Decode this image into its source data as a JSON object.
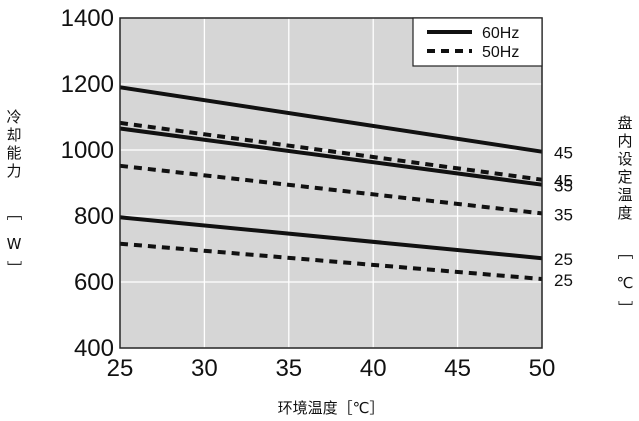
{
  "chart_data": {
    "type": "line",
    "title": "",
    "xlabel": "环境温度［℃］",
    "ylabel_chars": [
      "冷",
      "却",
      "能",
      "力"
    ],
    "ylabel_unit": [
      "［",
      "W",
      "］"
    ],
    "right_label_chars": [
      "盘",
      "内",
      "设",
      "定",
      "温",
      "度"
    ],
    "right_label_unit": [
      "［",
      "℃",
      "］"
    ],
    "xlim": [
      25,
      50
    ],
    "ylim": [
      400,
      1400
    ],
    "x_ticks": [
      25,
      30,
      35,
      40,
      45,
      50
    ],
    "y_ticks": [
      400,
      600,
      800,
      1000,
      1200,
      1400
    ],
    "grid": true,
    "legend": {
      "position": "top-right",
      "entries": [
        {
          "name": "60Hz",
          "style": "solid"
        },
        {
          "name": "50Hz",
          "style": "dashed"
        }
      ]
    },
    "series": [
      {
        "freq": "60Hz",
        "label": "45",
        "style": "solid",
        "x": [
          25,
          50
        ],
        "y": [
          1190,
          995
        ]
      },
      {
        "freq": "50Hz",
        "label": "45",
        "style": "dashed",
        "x": [
          25,
          50
        ],
        "y": [
          1082,
          910
        ]
      },
      {
        "freq": "60Hz",
        "label": "35",
        "style": "solid",
        "x": [
          25,
          50
        ],
        "y": [
          1065,
          895
        ]
      },
      {
        "freq": "50Hz",
        "label": "35",
        "style": "dashed",
        "x": [
          25,
          50
        ],
        "y": [
          952,
          808
        ]
      },
      {
        "freq": "60Hz",
        "label": "25",
        "style": "solid",
        "x": [
          25,
          50
        ],
        "y": [
          796,
          672
        ]
      },
      {
        "freq": "50Hz",
        "label": "25",
        "style": "dashed",
        "x": [
          25,
          50
        ],
        "y": [
          716,
          609
        ]
      }
    ],
    "colors": {
      "background": "#d6d6d6",
      "grid": "#ffffff",
      "line": "#111111",
      "frame": "#222222"
    }
  }
}
